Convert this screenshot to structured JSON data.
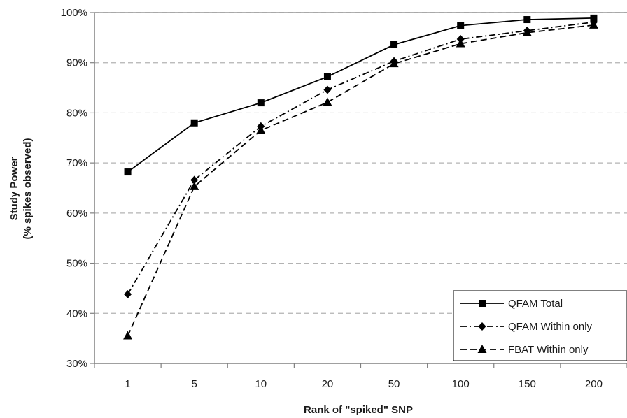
{
  "chart_data": {
    "type": "line",
    "categories": [
      "1",
      "5",
      "10",
      "20",
      "50",
      "100",
      "150",
      "200"
    ],
    "series": [
      {
        "name": "QFAM Total",
        "values": [
          68.2,
          78.0,
          82.0,
          87.2,
          93.6,
          97.4,
          98.6,
          98.9
        ],
        "marker": "square",
        "dash": "solid"
      },
      {
        "name": "QFAM Within only",
        "values": [
          43.8,
          66.6,
          77.3,
          84.6,
          90.3,
          94.7,
          96.4,
          98.1
        ],
        "marker": "diamond",
        "dash": "dash-dot"
      },
      {
        "name": "FBAT Within only",
        "values": [
          35.5,
          65.3,
          76.5,
          82.1,
          89.8,
          93.8,
          96.0,
          97.5
        ],
        "marker": "triangle",
        "dash": "dashed"
      }
    ],
    "xlabel": "Rank of \"spiked\" SNP",
    "ylabel_line1": "Study Power",
    "ylabel_line2": "(% spikes observed)",
    "ylim": [
      30,
      100
    ],
    "yticks": [
      30,
      40,
      50,
      60,
      70,
      80,
      90,
      100
    ],
    "ytick_labels": [
      "30%",
      "40%",
      "50%",
      "60%",
      "70%",
      "80%",
      "90%",
      "100%"
    ],
    "grid": "horizontal dashed",
    "legend_position": "bottom-right",
    "colors": {
      "line": "#000000",
      "grid": "#b3b3b3",
      "axis": "#808080",
      "background": "#ffffff"
    }
  }
}
